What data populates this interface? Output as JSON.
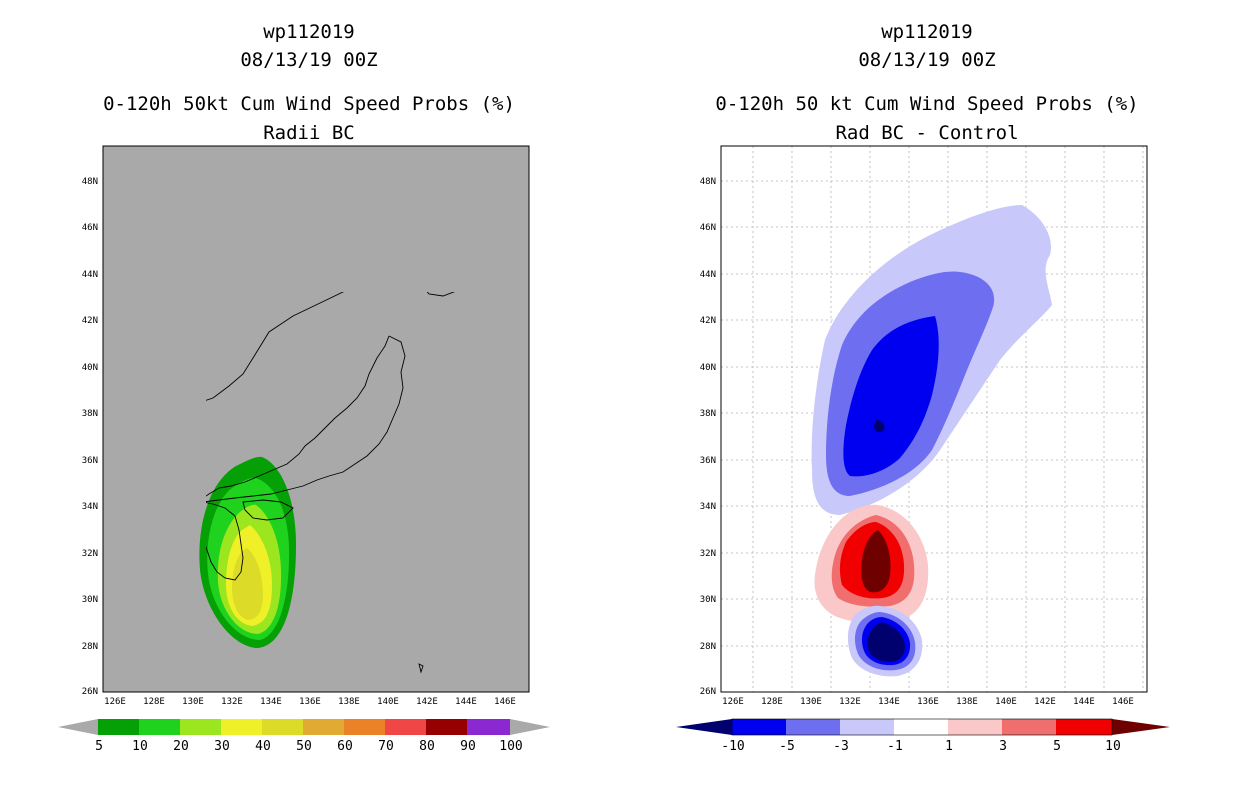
{
  "left_panel": {
    "title_line1": "wp112019",
    "title_line2": "08/13/19 00Z",
    "title_line3": "0-120h 50kt Cum Wind Speed Probs (%)",
    "title_line4": "Radii BC",
    "colorbar": {
      "labels": [
        "5",
        "10",
        "20",
        "30",
        "40",
        "50",
        "60",
        "70",
        "80",
        "90",
        "100"
      ],
      "colors": [
        "#05a005",
        "#1ed21e",
        "#9be61e",
        "#f0f028",
        "#dcdc28",
        "#e1aa32",
        "#eb8228",
        "#f04646",
        "#960000",
        "#8c28d2"
      ]
    }
  },
  "right_panel": {
    "title_line1": "wp112019",
    "title_line2": "08/13/19 00Z",
    "title_line3": "0-120h 50 kt Cum Wind Speed Probs (%)",
    "title_line4": "Rad BC - Control",
    "colorbar": {
      "labels": [
        "-10",
        "-5",
        "-3",
        "-1",
        "1",
        "3",
        "5",
        "10"
      ],
      "colors": [
        "#00006e",
        "#0000f0",
        "#6e6ef0",
        "#c8c8fa",
        "#ffffff",
        "#fac8c8",
        "#f06e6e",
        "#f00000",
        "#6e0000"
      ]
    }
  },
  "axes": {
    "lat_labels": [
      "48N",
      "46N",
      "44N",
      "42N",
      "40N",
      "38N",
      "36N",
      "34N",
      "32N",
      "30N",
      "28N",
      "26N"
    ],
    "lon_labels": [
      "126E",
      "128E",
      "130E",
      "132E",
      "134E",
      "136E",
      "138E",
      "140E",
      "142E",
      "144E",
      "146E"
    ]
  },
  "colors": {
    "map_bg_left": "#a9a9a9",
    "map_bg_right": "#ffffff"
  }
}
